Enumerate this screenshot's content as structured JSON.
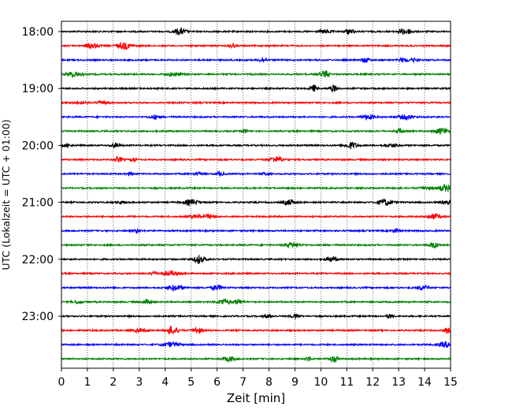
{
  "chart_data": {
    "type": "line",
    "title": "",
    "xlabel": "Zeit  [min]",
    "ylabel": "UTC (Lokalzeit = UTC + 01:00)",
    "xlim": [
      0,
      15
    ],
    "x_ticks": [
      "0",
      "1",
      "2",
      "3",
      "4",
      "5",
      "6",
      "7",
      "8",
      "9",
      "10",
      "11",
      "12",
      "13",
      "14",
      "15"
    ],
    "y_tick_labels": [
      "18:00",
      "19:00",
      "20:00",
      "21:00",
      "22:00",
      "23:00"
    ],
    "grid": "vertical-dotted",
    "trace_colors": [
      "#000000",
      "#ff0000",
      "#0000ff",
      "#008000"
    ],
    "traces_per_hour": 4,
    "trace_start_times": [
      "18:00",
      "18:15",
      "18:30",
      "18:45",
      "19:00",
      "19:15",
      "19:30",
      "19:45",
      "20:00",
      "20:15",
      "20:30",
      "20:45",
      "21:00",
      "21:15",
      "21:30",
      "21:45",
      "22:00",
      "22:15",
      "22:30",
      "22:45",
      "23:00",
      "23:15",
      "23:30",
      "23:45"
    ]
  }
}
